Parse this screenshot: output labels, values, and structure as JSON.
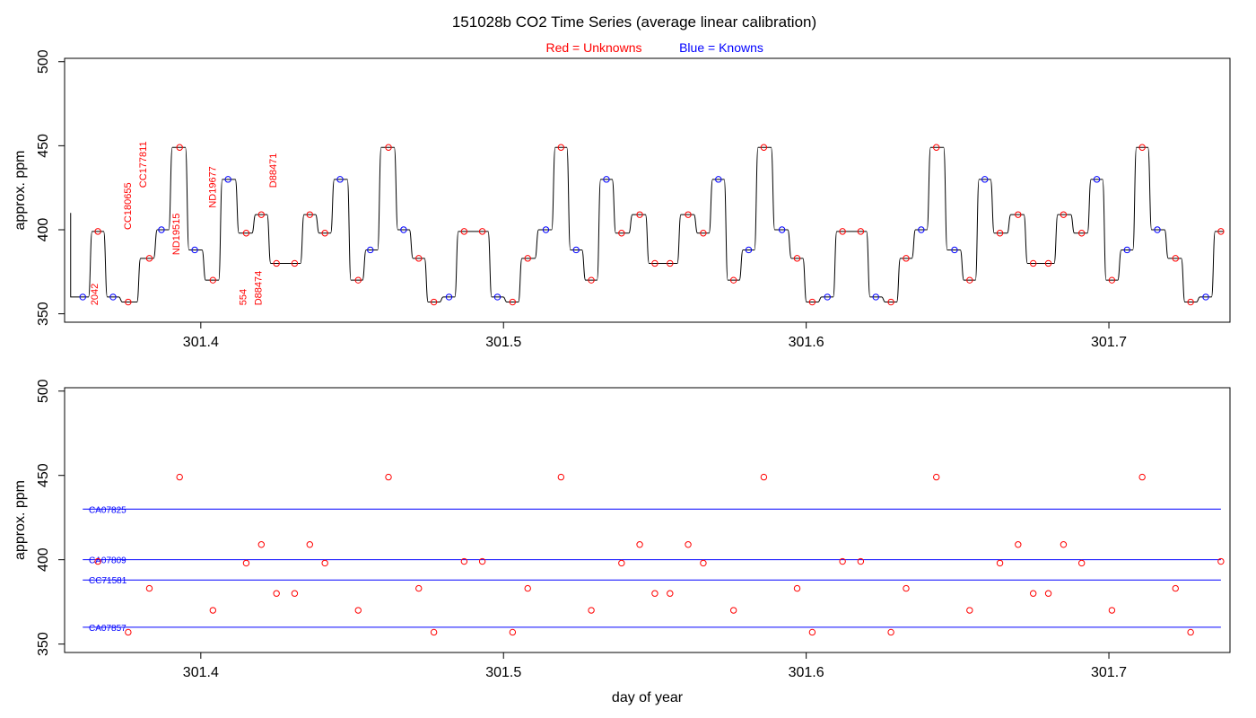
{
  "title": "151028b   CO2 Time Series (average linear calibration)",
  "legend": {
    "unknowns_label": "Red = Unknowns",
    "knowns_label": "Blue = Knowns",
    "unknowns_color": "#ff0000",
    "knowns_color": "#0000ff"
  },
  "colors": {
    "trace": "#000000",
    "unknown": "#ff0000",
    "known": "#0000ff",
    "axis": "#000000"
  },
  "chart_data": [
    {
      "type": "line",
      "panel": "top",
      "ylabel": "approx. ppm",
      "xlabel": "",
      "xlim": [
        301.355,
        301.74
      ],
      "ylim": [
        345,
        502
      ],
      "x_ticks": [
        301.4,
        301.5,
        301.6,
        301.7
      ],
      "x_tick_labels": [
        "301.4",
        "301.5",
        "301.6",
        "301.7"
      ],
      "y_ticks": [
        350,
        400,
        450,
        500
      ],
      "y_tick_labels": [
        "350",
        "400",
        "450",
        "500"
      ],
      "series": [
        {
          "kind": "unknown",
          "x": [
            301.366,
            301.376,
            301.383,
            301.393,
            301.404,
            301.415,
            301.42,
            301.425,
            301.431,
            301.436,
            301.441,
            301.452,
            301.462,
            301.472,
            301.477,
            301.487,
            301.493,
            301.503,
            301.508,
            301.519,
            301.529,
            301.539,
            301.545,
            301.55,
            301.555,
            301.561,
            301.566,
            301.576,
            301.586,
            301.597,
            301.602,
            301.612,
            301.618,
            301.628,
            301.633,
            301.643,
            301.654,
            301.664,
            301.67,
            301.675,
            301.68,
            301.685,
            301.691,
            301.701,
            301.711,
            301.722,
            301.727,
            301.737
          ],
          "y": [
            399,
            357,
            383,
            449,
            370,
            398,
            409,
            380,
            380,
            409,
            398,
            370,
            449,
            383,
            357,
            399,
            399,
            357,
            383,
            449,
            370,
            398,
            409,
            380,
            380,
            409,
            398,
            370,
            449,
            383,
            357,
            399,
            399,
            357,
            383,
            449,
            370,
            398,
            409,
            380,
            380,
            409,
            398,
            370,
            449,
            383,
            357,
            399
          ]
        },
        {
          "kind": "known",
          "x": [
            301.361,
            301.371,
            301.387,
            301.398,
            301.409,
            301.446,
            301.456,
            301.467,
            301.482,
            301.498,
            301.514,
            301.524,
            301.534,
            301.571,
            301.581,
            301.592,
            301.607,
            301.623,
            301.638,
            301.649,
            301.659,
            301.696,
            301.706,
            301.716,
            301.732
          ],
          "y": [
            360,
            360,
            400,
            388,
            430,
            430,
            388,
            400,
            360,
            360,
            400,
            388,
            430,
            430,
            388,
            400,
            360,
            360,
            400,
            388,
            430,
            430,
            388,
            400,
            360
          ]
        }
      ],
      "sample_labels": [
        {
          "text": "2042",
          "x": 301.366,
          "y": 355
        },
        {
          "text": "CC180655",
          "x": 301.377,
          "y": 400
        },
        {
          "text": "CC177811",
          "x": 301.382,
          "y": 425
        },
        {
          "text": "ND19515",
          "x": 301.393,
          "y": 385
        },
        {
          "text": "ND19677",
          "x": 301.405,
          "y": 413
        },
        {
          "text": "554",
          "x": 301.415,
          "y": 355
        },
        {
          "text": "D88474",
          "x": 301.42,
          "y": 355
        },
        {
          "text": "D88471",
          "x": 301.425,
          "y": 425
        }
      ]
    },
    {
      "type": "scatter",
      "panel": "bottom",
      "ylabel": "approx. ppm",
      "xlabel": "day of year",
      "xlim": [
        301.355,
        301.74
      ],
      "ylim": [
        345,
        502
      ],
      "x_ticks": [
        301.4,
        301.5,
        301.6,
        301.7
      ],
      "x_tick_labels": [
        "301.4",
        "301.5",
        "301.6",
        "301.7"
      ],
      "y_ticks": [
        350,
        400,
        450,
        500
      ],
      "y_tick_labels": [
        "350",
        "400",
        "450",
        "500"
      ],
      "reference_lines": [
        {
          "name": "CA07825",
          "y": 430,
          "x_start": 301.361,
          "x_end": 301.737
        },
        {
          "name": "CA07809",
          "y": 400,
          "x_start": 301.361,
          "x_end": 301.737
        },
        {
          "name": "CC71581",
          "y": 388,
          "x_start": 301.361,
          "x_end": 301.737
        },
        {
          "name": "CA07857",
          "y": 360,
          "x_start": 301.361,
          "x_end": 301.737
        }
      ],
      "points": {
        "x": [
          301.366,
          301.376,
          301.383,
          301.393,
          301.404,
          301.415,
          301.42,
          301.425,
          301.431,
          301.436,
          301.441,
          301.452,
          301.462,
          301.472,
          301.477,
          301.487,
          301.493,
          301.503,
          301.508,
          301.519,
          301.529,
          301.539,
          301.545,
          301.55,
          301.555,
          301.561,
          301.566,
          301.576,
          301.586,
          301.597,
          301.602,
          301.612,
          301.618,
          301.628,
          301.633,
          301.643,
          301.654,
          301.664,
          301.67,
          301.675,
          301.68,
          301.685,
          301.691,
          301.701,
          301.711,
          301.722,
          301.727,
          301.737
        ],
        "y": [
          399,
          357,
          383,
          449,
          370,
          398,
          409,
          380,
          380,
          409,
          398,
          370,
          449,
          383,
          357,
          399,
          399,
          357,
          383,
          449,
          370,
          398,
          409,
          380,
          380,
          409,
          398,
          370,
          449,
          383,
          357,
          399,
          399,
          357,
          383,
          449,
          370,
          398,
          409,
          380,
          380,
          409,
          398,
          370,
          449,
          383,
          357,
          399
        ]
      }
    }
  ]
}
